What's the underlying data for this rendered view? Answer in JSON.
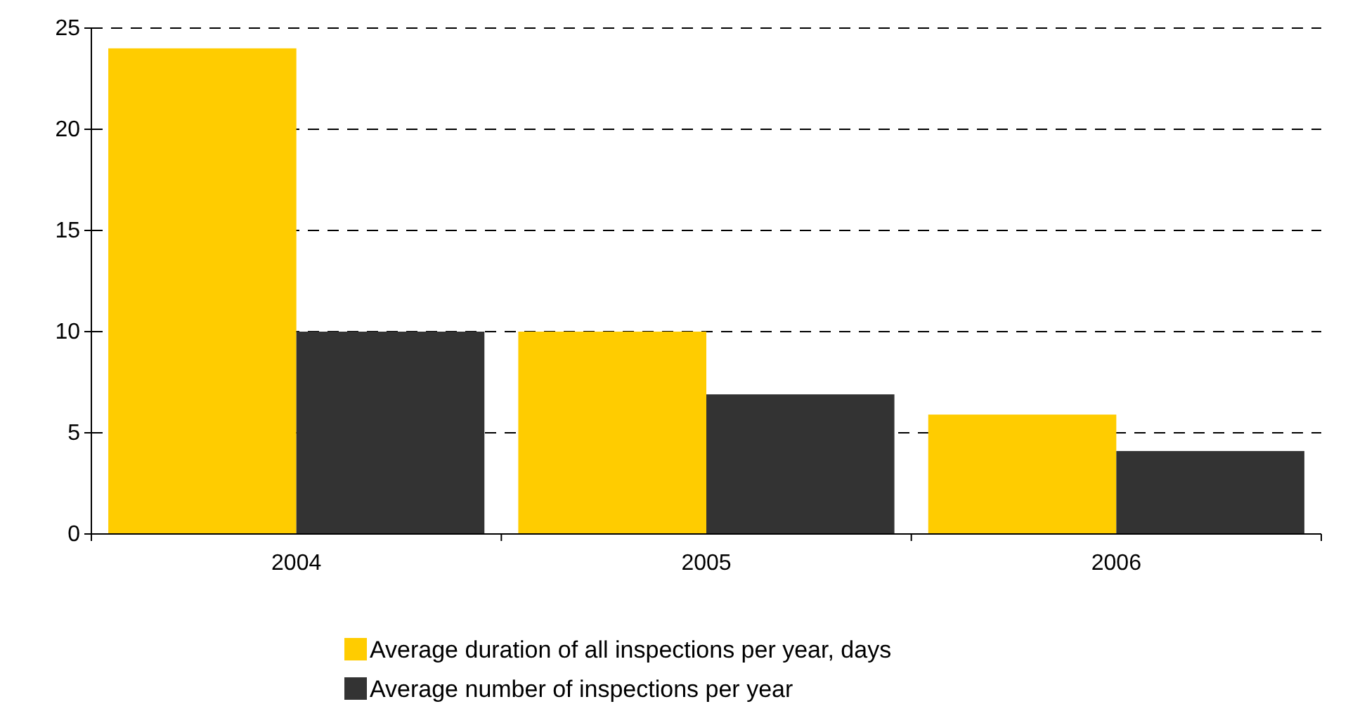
{
  "chart_data": {
    "type": "bar",
    "categories": [
      "2004",
      "2005",
      "2006"
    ],
    "series": [
      {
        "name": "Average duration of all inspections per year, days",
        "color": "#ffcc00",
        "values": [
          24,
          10,
          5.9
        ]
      },
      {
        "name": "Average number of inspections per year",
        "color": "#333333",
        "values": [
          10,
          6.9,
          4.1
        ]
      }
    ],
    "ylim": [
      0,
      25
    ],
    "yticks": [
      0,
      5,
      10,
      15,
      20,
      25
    ],
    "grid": "y",
    "legend": "bottom"
  }
}
